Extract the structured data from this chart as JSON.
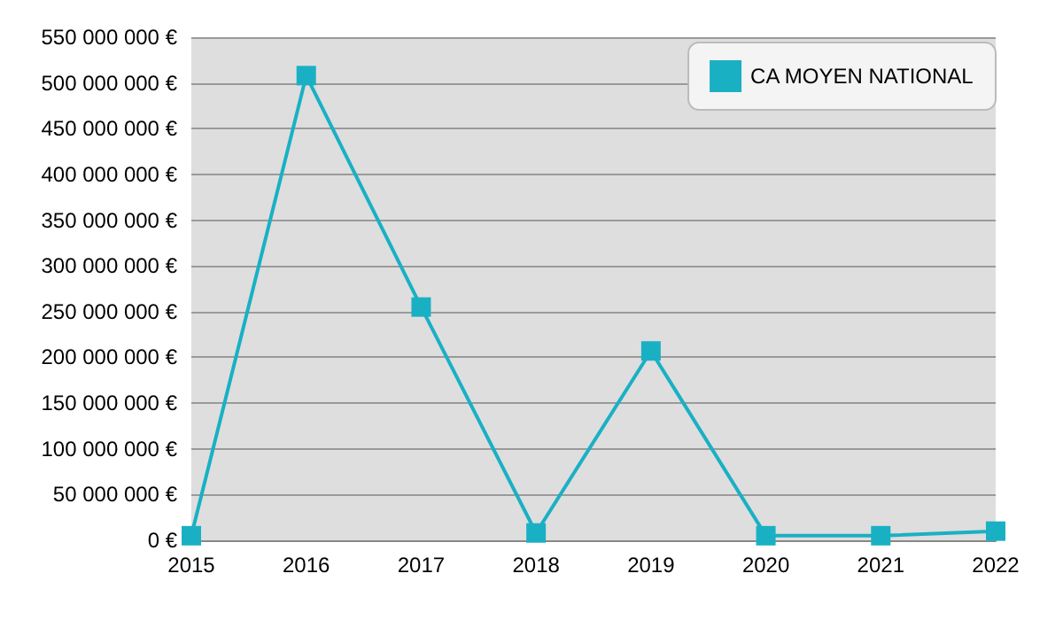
{
  "chart_data": {
    "type": "line",
    "categories": [
      "2015",
      "2016",
      "2017",
      "2018",
      "2019",
      "2020",
      "2021",
      "2022"
    ],
    "series": [
      {
        "name": "CA MOYEN NATIONAL",
        "color": "#1ab0c4",
        "values": [
          5000000,
          508000000,
          255000000,
          8000000,
          207000000,
          5000000,
          5000000,
          10000000
        ]
      }
    ],
    "ylim": [
      0,
      550000000
    ],
    "yticks": [
      {
        "value": 0,
        "label": "0 €"
      },
      {
        "value": 50000000,
        "label": "50 000 000 €"
      },
      {
        "value": 100000000,
        "label": "100 000 000 €"
      },
      {
        "value": 150000000,
        "label": "150 000 000 €"
      },
      {
        "value": 200000000,
        "label": "200 000 000 €"
      },
      {
        "value": 250000000,
        "label": "250 000 000 €"
      },
      {
        "value": 300000000,
        "label": "300 000 000 €"
      },
      {
        "value": 350000000,
        "label": "350 000 000 €"
      },
      {
        "value": 400000000,
        "label": "400 000 000 €"
      },
      {
        "value": 450000000,
        "label": "450 000 000 €"
      },
      {
        "value": 500000000,
        "label": "500 000 000 €"
      },
      {
        "value": 550000000,
        "label": "550 000 000 €"
      }
    ],
    "grid": "y",
    "legend": "top right",
    "marker": "square",
    "line_style": "solid"
  }
}
